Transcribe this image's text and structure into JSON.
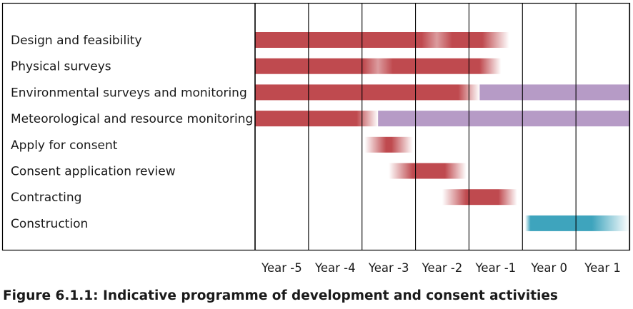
{
  "chart_data": {
    "type": "gantt",
    "title": "",
    "xlabel": "",
    "ylabel": "",
    "categories": [
      "Year -5",
      "Year -4",
      "Year -3",
      "Year -2",
      "Year -1",
      "Year 0",
      "Year 1"
    ],
    "xlim": [
      0,
      7
    ],
    "grid": "vertical",
    "colors": {
      "development": "#bf4a4f",
      "monitoring": "#b69bc6",
      "construction": "#3ea4bd",
      "grid": "#000000"
    },
    "tasks": [
      {
        "label": "Design and feasibility",
        "segments": [
          {
            "start": 0,
            "end": 4.75,
            "color": "#bf4a4f",
            "fade_start": 0,
            "fade_end": 0.5,
            "light_spot": 3.4
          }
        ]
      },
      {
        "label": "Physical surveys",
        "segments": [
          {
            "start": 0,
            "end": 4.6,
            "color": "#bf4a4f",
            "fade_start": 0,
            "fade_end": 0.4,
            "light_spot": 2.3
          }
        ]
      },
      {
        "label": "Environmental surveys and monitoring",
        "segments": [
          {
            "start": 0,
            "end": 4.2,
            "color": "#bf4a4f",
            "fade_start": 0,
            "fade_end": 0.4
          },
          {
            "start": 4.2,
            "end": 7,
            "color": "#b69bc6",
            "fade_start": 0,
            "fade_end": 0
          }
        ]
      },
      {
        "label": "Meteorological and resource monitoring",
        "segments": [
          {
            "start": 0,
            "end": 2.3,
            "color": "#bf4a4f",
            "fade_start": 0,
            "fade_end": 0.4
          },
          {
            "start": 2.3,
            "end": 7,
            "color": "#b69bc6",
            "fade_start": 0,
            "fade_end": 0
          }
        ]
      },
      {
        "label": "Apply for consent",
        "segments": [
          {
            "start": 2.05,
            "end": 2.95,
            "color": "#bf4a4f",
            "fade_start": 0.4,
            "fade_end": 0.4
          }
        ]
      },
      {
        "label": "Consent application review",
        "segments": [
          {
            "start": 2.5,
            "end": 3.95,
            "color": "#bf4a4f",
            "fade_start": 0.45,
            "fade_end": 0.4
          }
        ]
      },
      {
        "label": "Contracting",
        "segments": [
          {
            "start": 3.5,
            "end": 4.9,
            "color": "#bf4a4f",
            "fade_start": 0.45,
            "fade_end": 0.35
          }
        ]
      },
      {
        "label": "Construction",
        "segments": [
          {
            "start": 5.05,
            "end": 7,
            "color": "#3ea4bd",
            "fade_start": 0.1,
            "fade_end": 0.7
          }
        ]
      }
    ]
  },
  "caption": "Figure 6.1.1: Indicative programme of development and consent activities"
}
